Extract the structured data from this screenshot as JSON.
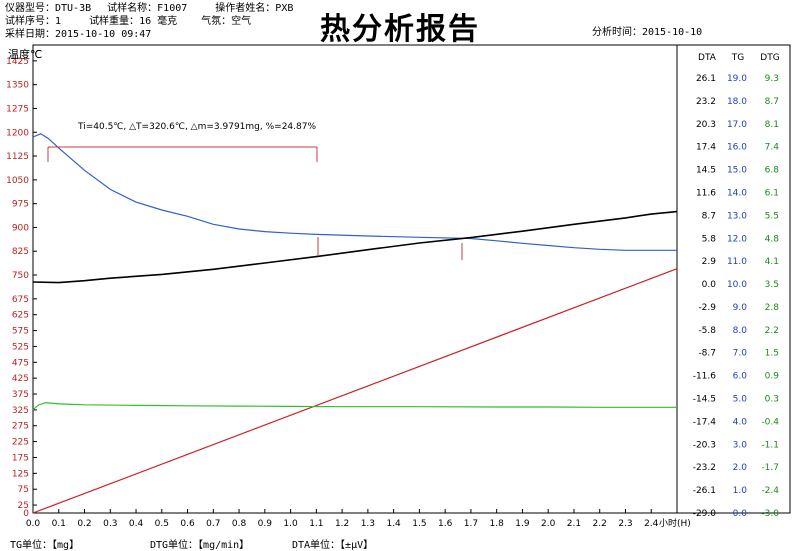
{
  "header": {
    "line1": [
      {
        "label": "仪器型号：",
        "value": "DTU-3B"
      },
      {
        "label": "试样名称：",
        "value": "F1007"
      },
      {
        "label": "操作者姓名：",
        "value": "PXB"
      }
    ],
    "line2": [
      {
        "label": "试样序号：",
        "value": "1"
      },
      {
        "label": "试样重量：",
        "value": "16  毫克"
      },
      {
        "label": "气氛：",
        "value": "空气"
      }
    ],
    "line3": [
      {
        "label": "采样日期：",
        "value": "2015-10-10    09:47"
      }
    ],
    "title": "热分析报告",
    "analysis_time_label": "分析时间：",
    "analysis_time": "2015-10-10"
  },
  "footer": {
    "tg_unit": "TG单位：【mg】",
    "dtg_unit": "DTG单位：【mg/min】",
    "dta_unit": "DTA单位：【±μV】"
  },
  "chart_data": {
    "type": "line",
    "ylabel": "温度℃",
    "xlabel": "小时(H)",
    "xlim": [
      0,
      2.5
    ],
    "ylim": [
      0,
      1475
    ],
    "x_ticks": [
      "0.0",
      "0.1",
      "0.2",
      "0.3",
      "0.4",
      "0.5",
      "0.6",
      "0.7",
      "0.8",
      "0.9",
      "1.0",
      "1.1",
      "1.2",
      "1.3",
      "1.4",
      "1.5",
      "1.6",
      "1.7",
      "1.8",
      "1.9",
      "2.0",
      "2.1",
      "2.2",
      "2.3",
      "2.4"
    ],
    "y_ticks": [
      0,
      25,
      75,
      125,
      175,
      225,
      275,
      325,
      375,
      425,
      475,
      525,
      575,
      625,
      675,
      750,
      825,
      900,
      975,
      1050,
      1125,
      1200,
      1275,
      1350,
      1425
    ],
    "right_axes": {
      "headers": [
        "DTA",
        "TG",
        "DTG"
      ],
      "DTA": [
        "26.1",
        "23.2",
        "20.3",
        "17.4",
        "14.5",
        "11.6",
        "8.7",
        "5.8",
        "2.9",
        "0.0",
        "-2.9",
        "-5.8",
        "-8.7",
        "-11.6",
        "-14.5",
        "-17.4",
        "-20.3",
        "-23.2",
        "-26.1",
        "-29.0"
      ],
      "TG": [
        "19.0",
        "18.0",
        "17.0",
        "16.0",
        "15.0",
        "14.0",
        "13.0",
        "12.0",
        "11.0",
        "10.0",
        "9.0",
        "8.0",
        "7.0",
        "6.0",
        "5.0",
        "4.0",
        "3.0",
        "2.0",
        "1.0",
        "0.0"
      ],
      "DTG": [
        "9.3",
        "8.7",
        "8.1",
        "7.4",
        "6.8",
        "6.1",
        "5.5",
        "4.8",
        "4.1",
        "3.5",
        "2.8",
        "2.2",
        "1.5",
        "0.9",
        "0.3",
        "-0.4",
        "-1.1",
        "-1.7",
        "-2.4",
        "-3.0"
      ],
      "colors": {
        "DTA": "#000000",
        "TG": "#1f3fbf",
        "DTG": "#1a8a1a"
      }
    },
    "annotation": "Ti=40.5℃, △T=320.6℃, △m=3.9791mg, %=24.87%",
    "series": [
      {
        "color": "#cc2222",
        "x": [
          0.0,
          2.5
        ],
        "y": [
          0,
          770
        ]
      },
      {
        "color": "#3060d0",
        "x": [
          0.0,
          0.03,
          0.06,
          0.1,
          0.2,
          0.3,
          0.4,
          0.5,
          0.6,
          0.7,
          0.8,
          0.9,
          1.0,
          1.1,
          1.3,
          1.5,
          1.7,
          1.8,
          1.9,
          2.0,
          2.1,
          2.2,
          2.3,
          2.4,
          2.5
        ],
        "y": [
          1185,
          1195,
          1180,
          1150,
          1080,
          1020,
          980,
          955,
          935,
          910,
          895,
          887,
          882,
          878,
          873,
          869,
          865,
          858,
          850,
          843,
          836,
          831,
          828,
          828,
          828
        ]
      },
      {
        "color": "#000000",
        "x": [
          0.0,
          0.1,
          0.2,
          0.3,
          0.5,
          0.7,
          0.9,
          1.1,
          1.3,
          1.5,
          1.7,
          1.9,
          2.1,
          2.3,
          2.4,
          2.5
        ],
        "y": [
          728,
          726,
          732,
          740,
          752,
          768,
          788,
          808,
          830,
          851,
          868,
          888,
          910,
          930,
          942,
          950
        ]
      },
      {
        "color": "#2fbf2f",
        "x": [
          0.0,
          0.02,
          0.05,
          0.1,
          0.2,
          0.4,
          0.6,
          0.8,
          1.0,
          1.2,
          1.5,
          1.8,
          2.0,
          2.2,
          2.5
        ],
        "y": [
          325,
          340,
          348,
          344,
          341,
          339,
          338,
          337,
          336,
          335,
          335,
          334,
          334,
          333,
          333
        ]
      }
    ]
  }
}
